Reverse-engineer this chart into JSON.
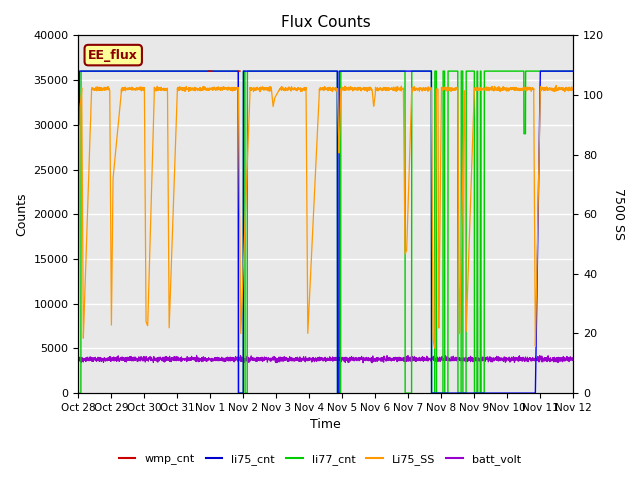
{
  "title": "Flux Counts",
  "xlabel": "Time",
  "ylabel_left": "Counts",
  "ylabel_right": "7500 SS",
  "annotation": "EE_flux",
  "ylim_left": [
    0,
    40000
  ],
  "ylim_right": [
    0,
    120
  ],
  "yticks_left": [
    0,
    5000,
    10000,
    15000,
    20000,
    25000,
    30000,
    35000,
    40000
  ],
  "yticks_right": [
    0,
    20,
    40,
    60,
    80,
    100,
    120
  ],
  "bg_color": "#e8e8e8",
  "plot_bg_color": "#d8d8d8",
  "legend_entries": [
    "wmp_cnt",
    "li75_cnt",
    "li77_cnt",
    "Li75_SS",
    "batt_volt"
  ],
  "legend_colors": [
    "#cc0000",
    "#0000cc",
    "#00cc00",
    "#ff9900",
    "#9900cc"
  ],
  "xtick_labels": [
    "Oct 28",
    "Oct 29",
    "Oct 30",
    "Oct 31",
    "Nov 1",
    "Nov 2",
    "Nov 3",
    "Nov 4",
    "Nov 5",
    "Nov 6",
    "Nov 7",
    "Nov 8",
    "Nov 9",
    "Nov 10",
    "Nov 11",
    "Nov 12"
  ],
  "xtick_positions": [
    0,
    1,
    2,
    3,
    4,
    5,
    6,
    7,
    8,
    9,
    10,
    11,
    12,
    13,
    14,
    15
  ],
  "xlim": [
    0,
    15
  ],
  "line_colors": {
    "wmp_cnt": "#cc0000",
    "li75_cnt": "#0000ff",
    "li77_cnt": "#00cc00",
    "Li75_SS": "#ff9900",
    "batt_volt": "#9900cc"
  },
  "batt_base": 3800,
  "batt_noise": 120,
  "li_high": 36000,
  "orange_high": 34000,
  "orange_scale": 120
}
